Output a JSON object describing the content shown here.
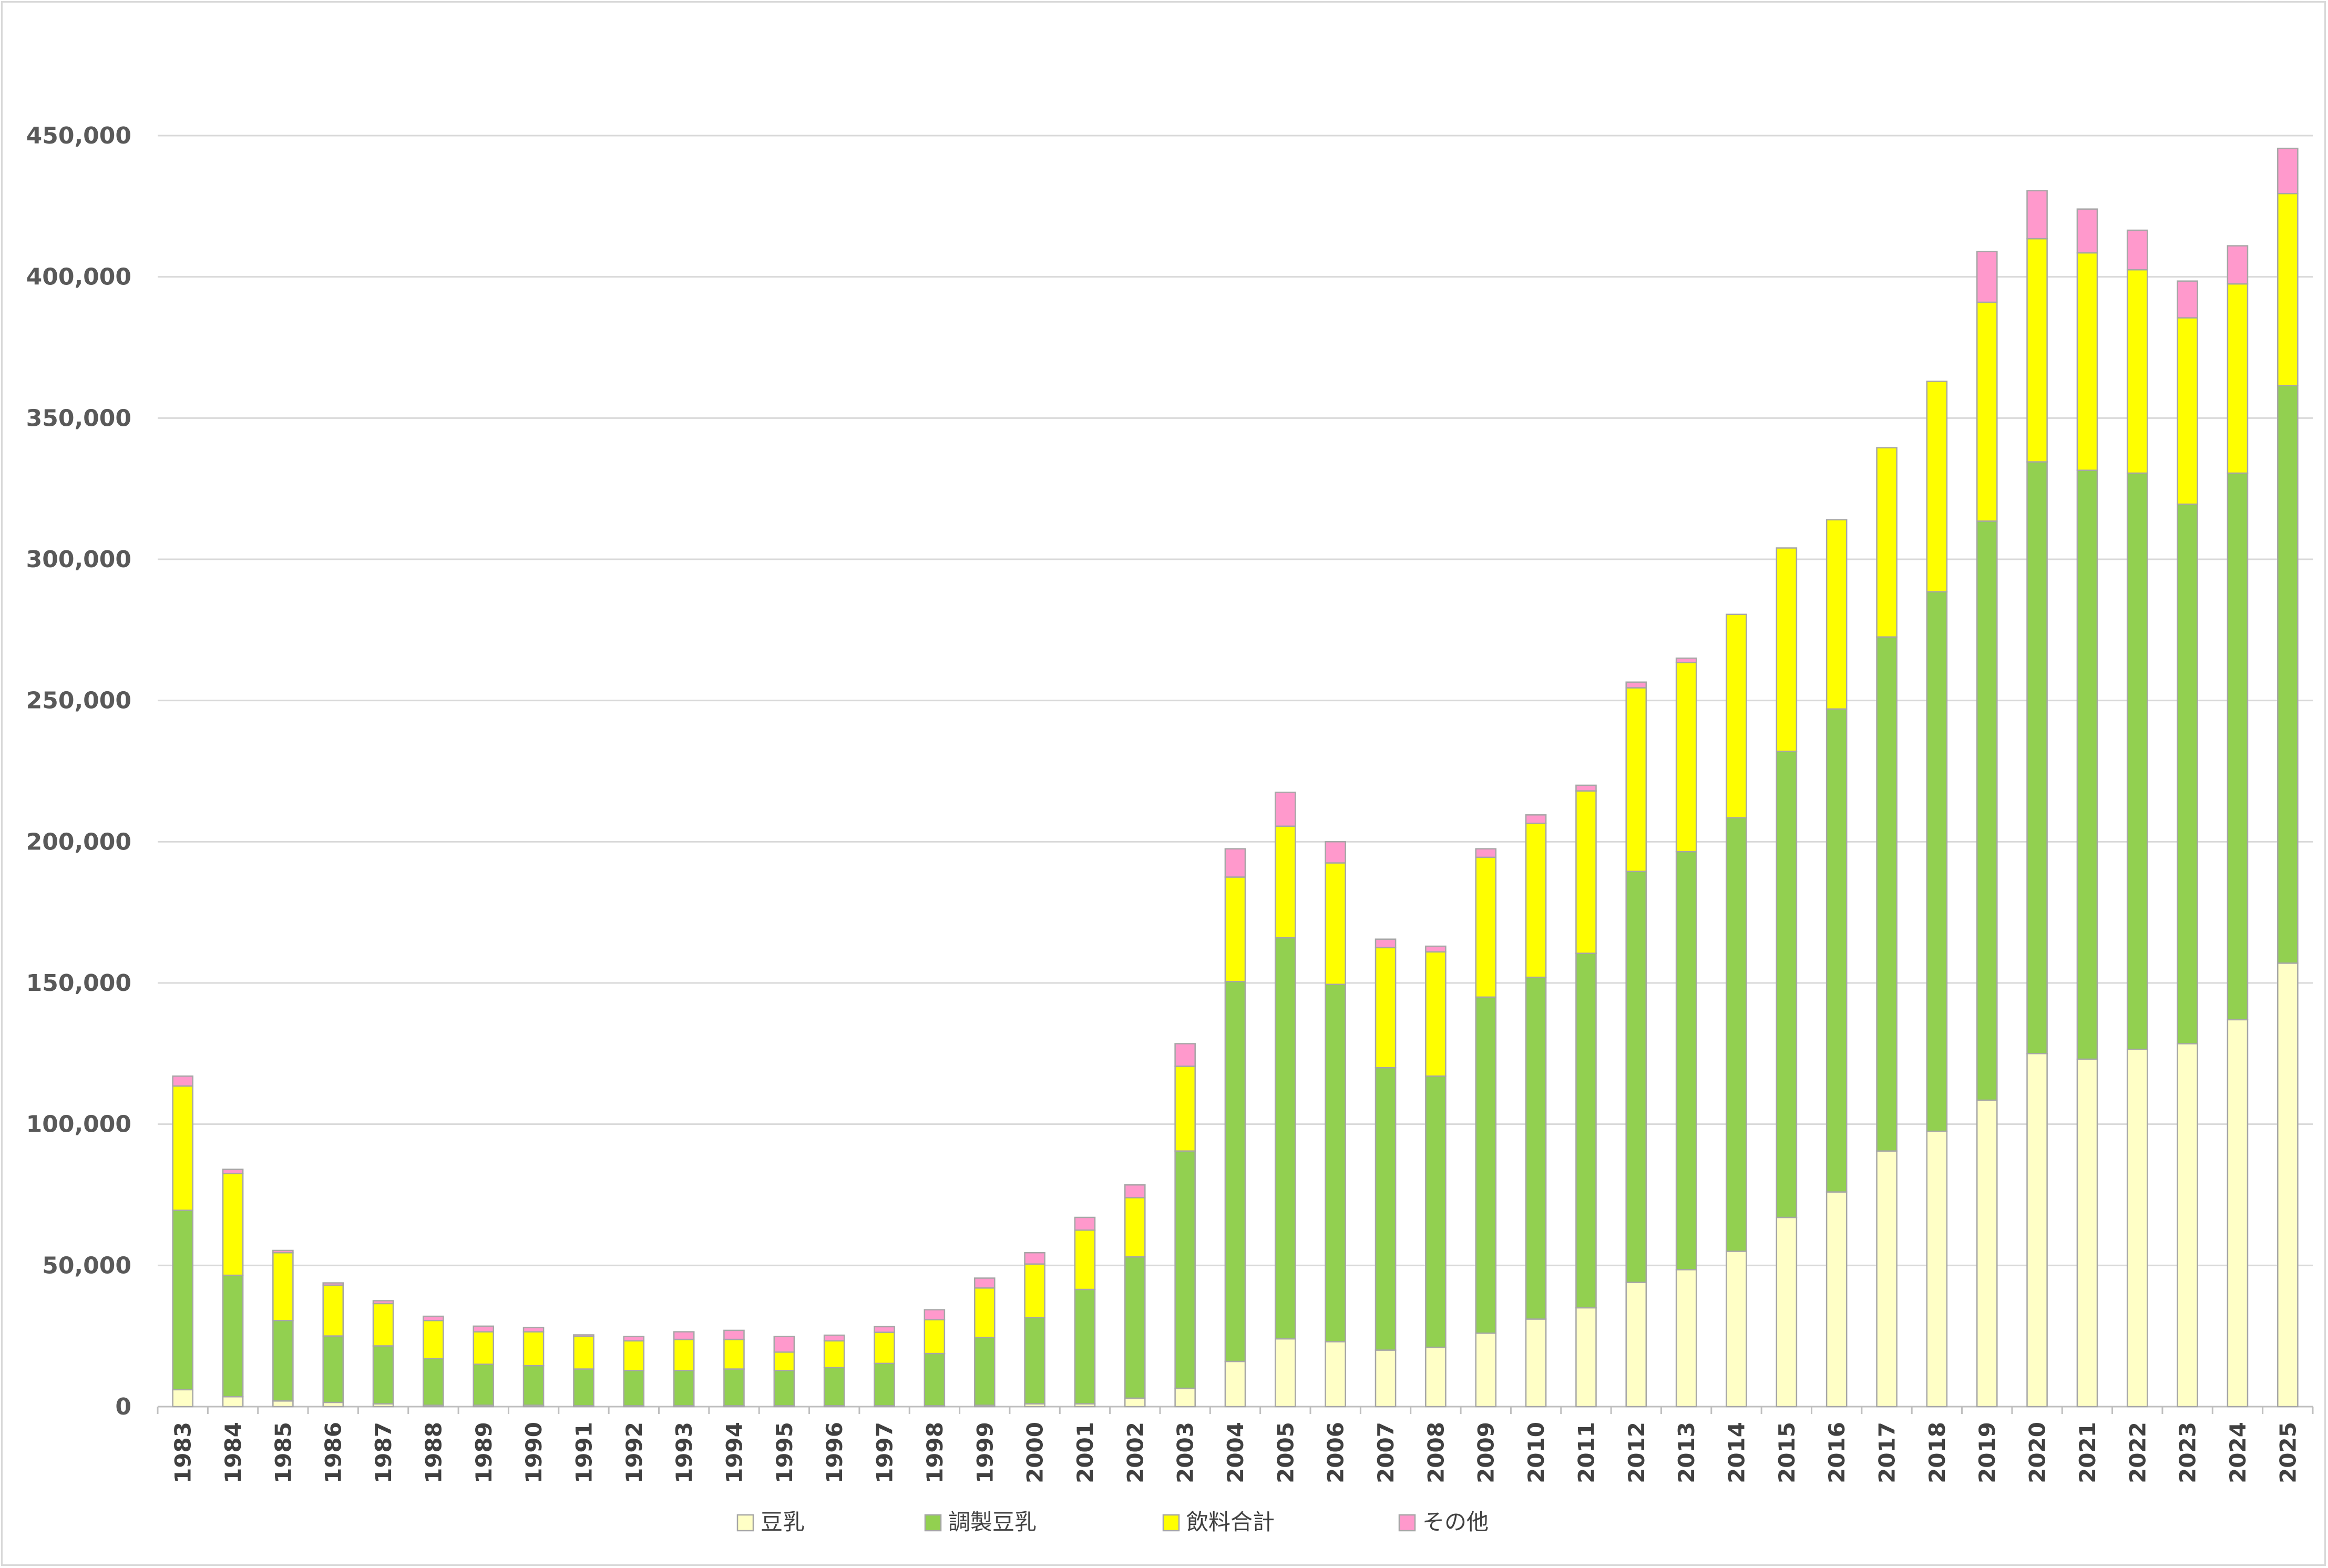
{
  "chart_data": {
    "type": "bar",
    "stacked": true,
    "title": "",
    "xlabel": "",
    "ylabel": "",
    "ylim": [
      0,
      450000
    ],
    "yticks": [
      0,
      50000,
      100000,
      150000,
      200000,
      250000,
      300000,
      350000,
      400000,
      450000
    ],
    "ytick_labels": [
      "0",
      "50,000",
      "100,000",
      "150,000",
      "200,000",
      "250,000",
      "300,000",
      "350,000",
      "400,000",
      "450,000"
    ],
    "grid": true,
    "legend_position": "bottom",
    "categories": [
      "1983",
      "1984",
      "1985",
      "1986",
      "1987",
      "1988",
      "1989",
      "1990",
      "1991",
      "1992",
      "1993",
      "1994",
      "1995",
      "1996",
      "1997",
      "1998",
      "1999",
      "2000",
      "2001",
      "2002",
      "2003",
      "2004",
      "2005",
      "2006",
      "2007",
      "2008",
      "2009",
      "2010",
      "2011",
      "2012",
      "2013",
      "2014",
      "2015",
      "2016",
      "2017",
      "2018",
      "2019",
      "2020",
      "2021",
      "2022",
      "2023",
      "2024",
      "2025"
    ],
    "series": [
      {
        "name": "豆乳",
        "color": "#ffffc6",
        "values": [
          6000,
          3500,
          2000,
          1500,
          1000,
          500,
          500,
          500,
          300,
          300,
          300,
          300,
          300,
          300,
          300,
          300,
          500,
          1000,
          1000,
          3000,
          6500,
          16000,
          24000,
          23000,
          20000,
          21000,
          26000,
          31000,
          35000,
          44000,
          48500,
          55000,
          67000,
          76000,
          90500,
          97500,
          108500,
          125000,
          123000,
          126500,
          128500,
          137000,
          157000
        ]
      },
      {
        "name": "調製豆乳",
        "color": "#92d050",
        "values": [
          63500,
          43000,
          28500,
          23500,
          20500,
          16500,
          14500,
          14000,
          13000,
          12500,
          12500,
          13000,
          12500,
          13500,
          15000,
          18500,
          24000,
          30500,
          40500,
          50000,
          84000,
          134500,
          142000,
          126500,
          100000,
          96000,
          119000,
          121000,
          125500,
          145500,
          148000,
          153500,
          165000,
          171000,
          182000,
          191000,
          205000,
          209500,
          208500,
          204000,
          191000,
          193500,
          204500
        ]
      },
      {
        "name": "飲料合計",
        "color": "#ffff00",
        "values": [
          44000,
          36000,
          24000,
          18000,
          15000,
          13500,
          11500,
          12000,
          11500,
          10500,
          11000,
          10500,
          6500,
          9500,
          11000,
          12000,
          17500,
          19000,
          21000,
          21000,
          30000,
          37000,
          39500,
          43000,
          42500,
          44000,
          49500,
          54500,
          57500,
          65000,
          67000,
          72000,
          72000,
          67000,
          67000,
          74500,
          77500,
          79000,
          77000,
          72000,
          66000,
          67000,
          68000
        ]
      },
      {
        "name": "その他",
        "color": "#ff99cc",
        "values": [
          3500,
          1500,
          800,
          800,
          1000,
          1500,
          2000,
          1500,
          600,
          1500,
          2700,
          3200,
          5500,
          2000,
          2000,
          3500,
          3500,
          4000,
          4500,
          4500,
          8000,
          10000,
          12000,
          7500,
          3000,
          2000,
          3000,
          3000,
          2000,
          2000,
          1500,
          0,
          0,
          0,
          0,
          0,
          18000,
          17000,
          15500,
          14000,
          13000,
          13500,
          16000
        ]
      }
    ],
    "bar_stroke_color": "#a6a6a6",
    "grid_color": "#d9d9d9"
  }
}
